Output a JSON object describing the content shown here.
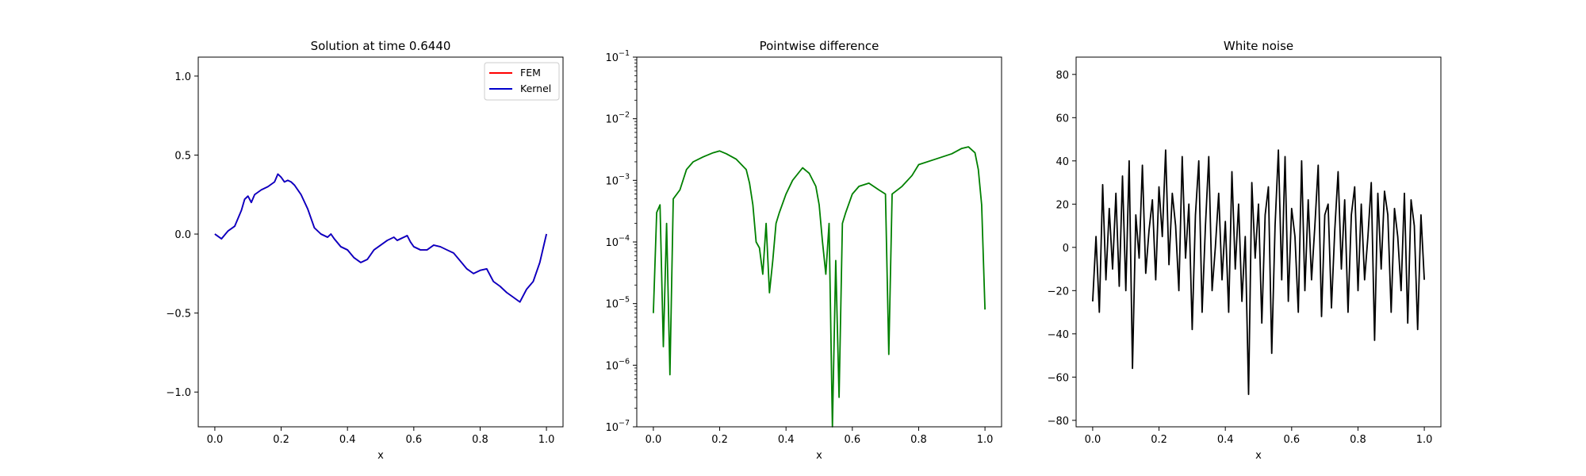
{
  "chart_data": [
    {
      "type": "line",
      "title": "Solution at time 0.6440",
      "xlabel": "x",
      "ylabel": "",
      "xlim": [
        -0.05,
        1.05
      ],
      "ylim": [
        -1.22,
        1.12
      ],
      "xticks": [
        0.0,
        0.2,
        0.4,
        0.6,
        0.8,
        1.0
      ],
      "xtick_labels": [
        "0.0",
        "0.2",
        "0.4",
        "0.6",
        "0.8",
        "1.0"
      ],
      "yticks": [
        -1.0,
        -0.5,
        0.0,
        0.5,
        1.0
      ],
      "ytick_labels": [
        "−1.0",
        "−0.5",
        "0.0",
        "0.5",
        "1.0"
      ],
      "legend": "top-right",
      "series": [
        {
          "name": "FEM",
          "color": "#ff0000",
          "x": [
            0.0,
            0.02,
            0.04,
            0.06,
            0.08,
            0.09,
            0.1,
            0.11,
            0.12,
            0.14,
            0.16,
            0.18,
            0.19,
            0.2,
            0.21,
            0.22,
            0.23,
            0.24,
            0.26,
            0.28,
            0.3,
            0.32,
            0.34,
            0.35,
            0.36,
            0.38,
            0.4,
            0.42,
            0.44,
            0.46,
            0.48,
            0.5,
            0.52,
            0.54,
            0.55,
            0.56,
            0.58,
            0.59,
            0.6,
            0.62,
            0.64,
            0.66,
            0.68,
            0.7,
            0.72,
            0.74,
            0.76,
            0.78,
            0.8,
            0.82,
            0.84,
            0.86,
            0.88,
            0.9,
            0.92,
            0.94,
            0.96,
            0.98,
            1.0
          ],
          "y": [
            0.0,
            -0.03,
            0.02,
            0.05,
            0.15,
            0.22,
            0.24,
            0.2,
            0.25,
            0.28,
            0.3,
            0.33,
            0.38,
            0.36,
            0.33,
            0.34,
            0.33,
            0.31,
            0.25,
            0.16,
            0.04,
            0.0,
            -0.02,
            0.0,
            -0.03,
            -0.08,
            -0.1,
            -0.15,
            -0.18,
            -0.16,
            -0.1,
            -0.07,
            -0.04,
            -0.02,
            -0.04,
            -0.03,
            -0.01,
            -0.05,
            -0.08,
            -0.1,
            -0.1,
            -0.07,
            -0.08,
            -0.1,
            -0.12,
            -0.17,
            -0.22,
            -0.25,
            -0.23,
            -0.22,
            -0.3,
            -0.33,
            -0.37,
            -0.4,
            -0.43,
            -0.35,
            -0.3,
            -0.18,
            0.0
          ]
        },
        {
          "name": "Kernel",
          "color": "#0000cc",
          "x": [
            0.0,
            0.02,
            0.04,
            0.06,
            0.08,
            0.09,
            0.1,
            0.11,
            0.12,
            0.14,
            0.16,
            0.18,
            0.19,
            0.2,
            0.21,
            0.22,
            0.23,
            0.24,
            0.26,
            0.28,
            0.3,
            0.32,
            0.34,
            0.35,
            0.36,
            0.38,
            0.4,
            0.42,
            0.44,
            0.46,
            0.48,
            0.5,
            0.52,
            0.54,
            0.55,
            0.56,
            0.58,
            0.59,
            0.6,
            0.62,
            0.64,
            0.66,
            0.68,
            0.7,
            0.72,
            0.74,
            0.76,
            0.78,
            0.8,
            0.82,
            0.84,
            0.86,
            0.88,
            0.9,
            0.92,
            0.94,
            0.96,
            0.98,
            1.0
          ],
          "y": [
            0.0,
            -0.03,
            0.02,
            0.05,
            0.15,
            0.22,
            0.24,
            0.2,
            0.25,
            0.28,
            0.3,
            0.33,
            0.38,
            0.36,
            0.33,
            0.34,
            0.33,
            0.31,
            0.25,
            0.16,
            0.04,
            0.0,
            -0.02,
            0.0,
            -0.03,
            -0.08,
            -0.1,
            -0.15,
            -0.18,
            -0.16,
            -0.1,
            -0.07,
            -0.04,
            -0.02,
            -0.04,
            -0.03,
            -0.01,
            -0.05,
            -0.08,
            -0.1,
            -0.1,
            -0.07,
            -0.08,
            -0.1,
            -0.12,
            -0.17,
            -0.22,
            -0.25,
            -0.23,
            -0.22,
            -0.3,
            -0.33,
            -0.37,
            -0.4,
            -0.43,
            -0.35,
            -0.3,
            -0.18,
            0.0
          ]
        }
      ]
    },
    {
      "type": "line",
      "title": "Pointwise difference",
      "xlabel": "x",
      "ylabel": "",
      "yscale": "log",
      "xlim": [
        -0.05,
        1.05
      ],
      "ylim": [
        1e-07,
        0.1
      ],
      "xticks": [
        0.0,
        0.2,
        0.4,
        0.6,
        0.8,
        1.0
      ],
      "xtick_labels": [
        "0.0",
        "0.2",
        "0.4",
        "0.6",
        "0.8",
        "1.0"
      ],
      "ytick_exponents": [
        "−7",
        "−6",
        "−5",
        "−4",
        "−3",
        "−2",
        "−1"
      ],
      "series": [
        {
          "color": "#008000",
          "x": [
            0.0,
            0.01,
            0.02,
            0.03,
            0.04,
            0.05,
            0.06,
            0.08,
            0.1,
            0.12,
            0.15,
            0.18,
            0.2,
            0.22,
            0.25,
            0.28,
            0.29,
            0.3,
            0.31,
            0.32,
            0.33,
            0.34,
            0.35,
            0.36,
            0.37,
            0.38,
            0.4,
            0.42,
            0.45,
            0.47,
            0.49,
            0.5,
            0.51,
            0.52,
            0.53,
            0.54,
            0.55,
            0.56,
            0.57,
            0.58,
            0.6,
            0.62,
            0.65,
            0.68,
            0.7,
            0.71,
            0.72,
            0.75,
            0.78,
            0.8,
            0.85,
            0.9,
            0.93,
            0.95,
            0.97,
            0.98,
            0.99,
            1.0
          ],
          "y": [
            7e-06,
            0.0003,
            0.0004,
            2e-06,
            0.0002,
            7e-07,
            0.0005,
            0.0007,
            0.0015,
            0.002,
            0.0024,
            0.0028,
            0.003,
            0.0027,
            0.0022,
            0.0015,
            0.0009,
            0.0004,
            0.0001,
            8e-05,
            3e-05,
            0.0002,
            1.5e-05,
            5e-05,
            0.0002,
            0.0003,
            0.0006,
            0.001,
            0.0016,
            0.0013,
            0.0008,
            0.0004,
            0.0001,
            3e-05,
            0.0002,
            1e-07,
            5e-05,
            3e-07,
            0.0002,
            0.0003,
            0.0006,
            0.0008,
            0.0009,
            0.0007,
            0.0006,
            1.5e-06,
            0.0006,
            0.0008,
            0.0012,
            0.0018,
            0.0022,
            0.0027,
            0.0033,
            0.0035,
            0.0028,
            0.0015,
            0.0004,
            8e-06
          ]
        }
      ]
    },
    {
      "type": "line",
      "title": "White noise",
      "xlabel": "x",
      "ylabel": "",
      "xlim": [
        -0.05,
        1.05
      ],
      "ylim": [
        -83,
        88
      ],
      "xticks": [
        0.0,
        0.2,
        0.4,
        0.6,
        0.8,
        1.0
      ],
      "xtick_labels": [
        "0.0",
        "0.2",
        "0.4",
        "0.6",
        "0.8",
        "1.0"
      ],
      "yticks": [
        -80,
        -60,
        -40,
        -20,
        0,
        20,
        40,
        60,
        80
      ],
      "ytick_labels": [
        "−80",
        "−60",
        "−40",
        "−20",
        "0",
        "20",
        "40",
        "60",
        "80"
      ],
      "series": [
        {
          "color": "#000000",
          "x": [
            0.0,
            0.01,
            0.02,
            0.03,
            0.04,
            0.05,
            0.06,
            0.07,
            0.08,
            0.09,
            0.1,
            0.11,
            0.12,
            0.13,
            0.14,
            0.15,
            0.16,
            0.17,
            0.18,
            0.19,
            0.2,
            0.21,
            0.22,
            0.23,
            0.24,
            0.25,
            0.26,
            0.27,
            0.28,
            0.29,
            0.3,
            0.31,
            0.32,
            0.33,
            0.34,
            0.35,
            0.36,
            0.37,
            0.38,
            0.39,
            0.4,
            0.41,
            0.42,
            0.43,
            0.44,
            0.45,
            0.46,
            0.47,
            0.48,
            0.49,
            0.5,
            0.51,
            0.52,
            0.53,
            0.54,
            0.55,
            0.56,
            0.57,
            0.58,
            0.59,
            0.6,
            0.61,
            0.62,
            0.63,
            0.64,
            0.65,
            0.66,
            0.67,
            0.68,
            0.69,
            0.7,
            0.71,
            0.72,
            0.73,
            0.74,
            0.75,
            0.76,
            0.77,
            0.78,
            0.79,
            0.8,
            0.81,
            0.82,
            0.83,
            0.84,
            0.85,
            0.86,
            0.87,
            0.88,
            0.89,
            0.9,
            0.91,
            0.92,
            0.93,
            0.94,
            0.95,
            0.96,
            0.97,
            0.98,
            0.99,
            1.0
          ],
          "y": [
            -25,
            5,
            -30,
            29,
            -15,
            18,
            -10,
            25,
            -18,
            33,
            -20,
            40,
            -56,
            15,
            -5,
            38,
            -12,
            8,
            22,
            -15,
            28,
            5,
            45,
            -8,
            25,
            10,
            -20,
            42,
            -5,
            20,
            -38,
            15,
            40,
            -30,
            10,
            42,
            -20,
            0,
            25,
            -15,
            12,
            -30,
            35,
            -10,
            20,
            -25,
            5,
            -68,
            30,
            -5,
            20,
            -35,
            15,
            28,
            -49,
            10,
            45,
            -15,
            42,
            -25,
            18,
            5,
            -30,
            40,
            -20,
            22,
            -15,
            10,
            38,
            -32,
            15,
            20,
            -28,
            8,
            35,
            -10,
            22,
            -30,
            15,
            28,
            -20,
            20,
            -15,
            5,
            30,
            -43,
            25,
            -10,
            26,
            15,
            -30,
            18,
            5,
            -20,
            25,
            -35,
            22,
            10,
            -38,
            15,
            -15
          ]
        }
      ]
    }
  ]
}
